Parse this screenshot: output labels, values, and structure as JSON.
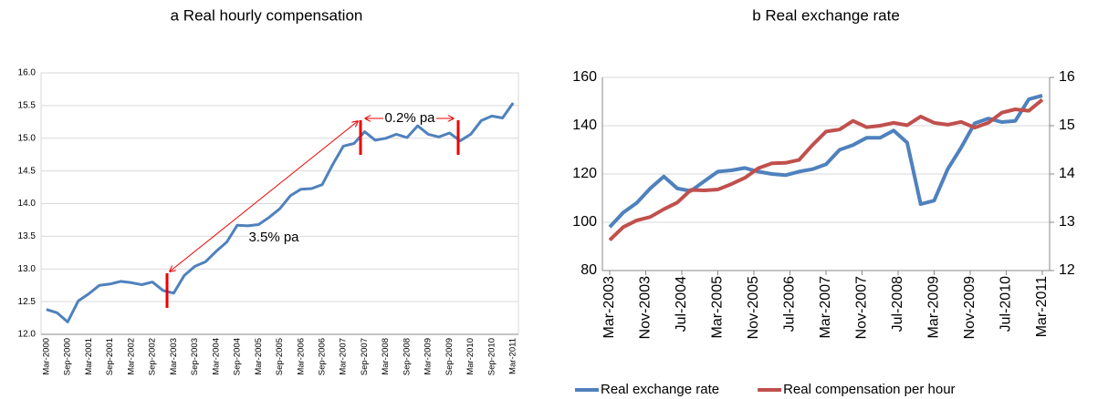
{
  "chart_data": [
    {
      "type": "line",
      "title": "a Real hourly compensation",
      "categories": [
        "Mar-2000",
        null,
        "Sep-2000",
        null,
        "Mar-2001",
        null,
        "Sep-2001",
        null,
        "Mar-2002",
        null,
        "Sep-2002",
        null,
        "Mar-2003",
        null,
        "Sep-2003",
        null,
        "Mar-2004",
        null,
        "Sep-2004",
        null,
        "Mar-2005",
        null,
        "Sep-2005",
        null,
        "Mar-2006",
        null,
        "Sep-2006",
        null,
        "Mar-2007",
        null,
        "Sep-2007",
        null,
        "Mar-2008",
        null,
        "Sep-2008",
        null,
        "Mar-2009",
        null,
        "Sep-2009",
        null,
        "Mar-2010",
        null,
        "Sep-2010",
        null,
        "Mar-2011"
      ],
      "series": [
        {
          "name": "Real hourly compensation",
          "color": "#4f81bd",
          "values": [
            12.38,
            12.33,
            12.19,
            12.51,
            12.62,
            12.75,
            12.77,
            12.81,
            12.79,
            12.76,
            12.8,
            12.67,
            12.63,
            12.9,
            13.04,
            13.11,
            13.27,
            13.41,
            13.67,
            13.66,
            13.68,
            13.79,
            13.92,
            14.12,
            14.22,
            14.23,
            14.29,
            14.6,
            14.88,
            14.92,
            15.1,
            14.97,
            15.0,
            15.06,
            15.01,
            15.19,
            15.06,
            15.02,
            15.08,
            14.96,
            15.06,
            15.27,
            15.34,
            15.31,
            15.54
          ]
        }
      ],
      "ylim": [
        12,
        16
      ],
      "yticks": [
        {
          "value": 12,
          "label": "12.0"
        },
        12.5,
        {
          "value": 13,
          "label": "13.0"
        },
        13.5,
        {
          "value": 14,
          "label": "14.0"
        },
        14.5,
        {
          "value": 15,
          "label": "15.0"
        },
        15.5,
        {
          "value": 16,
          "label": "16.0"
        }
      ],
      "grid": true,
      "annotations": [
        "3.5% pa",
        "0.2% pa"
      ]
    },
    {
      "type": "line",
      "title": "b Real exchange rate",
      "x": [
        "Mar-2003",
        "Jun-2003",
        "Sep-2003",
        "Dec-2003",
        "Mar-2004",
        "Jun-2004",
        "Sep-2004",
        "Dec-2004",
        "Mar-2005",
        "Jun-2005",
        "Sep-2005",
        "Dec-2005",
        "Mar-2006",
        "Jun-2006",
        "Sep-2006",
        "Dec-2006",
        "Mar-2007",
        "Jun-2007",
        "Sep-2007",
        "Dec-2007",
        "Mar-2008",
        "Jun-2008",
        "Sep-2008",
        "Dec-2008",
        "Mar-2009",
        "Jun-2009",
        "Sep-2009",
        "Dec-2009",
        "Mar-2010",
        "Jun-2010",
        "Sep-2010",
        "Dec-2010",
        "Mar-2011"
      ],
      "xlim": [
        "Mar-2003",
        "Mar-2011"
      ],
      "xticks": [
        "Mar-2003",
        "Nov-2003",
        "Jul-2004",
        "Mar-2005",
        "Nov-2005",
        "Jul-2006",
        "Mar-2007",
        "Nov-2007",
        "Jul-2008",
        "Mar-2009",
        "Nov-2009",
        "Jul-2010",
        "Mar-2011"
      ],
      "series": [
        {
          "name": "Real exchange rate",
          "color": "#4f81bd",
          "values": [
            98,
            104,
            108,
            114,
            119,
            114,
            113,
            117,
            121,
            121.5,
            122.5,
            121,
            120,
            119.5,
            121,
            122,
            124,
            130,
            132,
            135,
            135,
            138,
            133,
            107.5,
            109,
            122,
            131,
            141,
            143,
            141.5,
            142,
            151,
            152.5
          ]
        },
        {
          "name": "Real compensation per hour",
          "color": "#c0504d",
          "axis": "y2",
          "values": [
            12.63,
            12.9,
            13.04,
            13.11,
            13.27,
            13.41,
            13.67,
            13.66,
            13.68,
            13.79,
            13.92,
            14.12,
            14.22,
            14.23,
            14.29,
            14.6,
            14.88,
            14.92,
            15.1,
            14.97,
            15.0,
            15.06,
            15.01,
            15.19,
            15.06,
            15.02,
            15.08,
            14.96,
            15.06,
            15.27,
            15.34,
            15.31,
            15.54
          ]
        }
      ],
      "ylim": [
        80,
        160
      ],
      "yticks": [
        80,
        100,
        120,
        140,
        160
      ],
      "y2lim": [
        12,
        16
      ],
      "y2ticks": [
        12,
        13,
        14,
        15,
        16
      ],
      "grid": true,
      "legend": "bottom"
    }
  ]
}
